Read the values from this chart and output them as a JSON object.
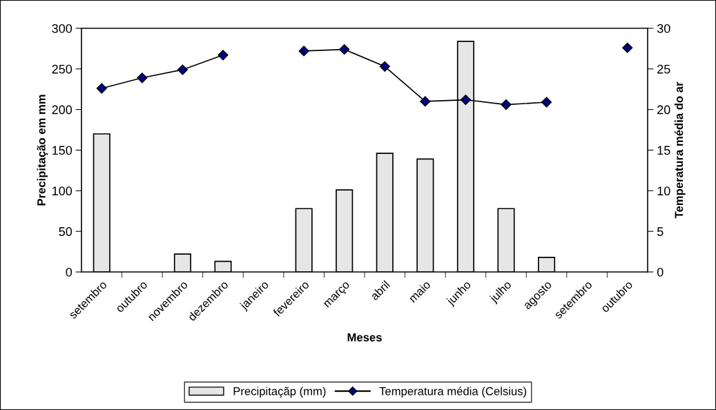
{
  "chart_data": {
    "type": "bar",
    "xlabel": "Meses",
    "ylabel": "Precipitação em mm",
    "y2label": "Temperatura média do ar",
    "categories": [
      "setembro",
      "outubro",
      "novembro",
      "dezembro",
      "janeiro",
      "fevereiro",
      "março",
      "abril",
      "maio",
      "junho",
      "julho",
      "agosto",
      "setembro",
      "outubro"
    ],
    "series": [
      {
        "name": "Precipitaçãp (mm)",
        "color": "#e6e6e6",
        "values": [
          170,
          null,
          22,
          13,
          null,
          78,
          101,
          146,
          139,
          284,
          78,
          18,
          null,
          null
        ]
      },
      {
        "name": "Temperatura média (Celsius)",
        "type": "line",
        "axis": "y2",
        "color": "#000080",
        "marker": "diamond",
        "values": [
          22.6,
          23.9,
          24.9,
          26.7,
          null,
          27.2,
          27.4,
          25.3,
          21.0,
          21.2,
          20.6,
          20.9,
          null,
          27.6
        ]
      }
    ],
    "ylim": [
      0,
      300
    ],
    "yticks": [
      0,
      50,
      100,
      150,
      200,
      250,
      300
    ],
    "y2lim": [
      0,
      30
    ],
    "y2ticks": [
      0,
      5,
      10,
      15,
      20,
      25,
      30
    ],
    "legend": "bottom",
    "grid": false
  }
}
